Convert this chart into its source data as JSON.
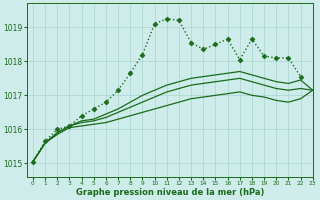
{
  "background_color": "#ceecea",
  "grid_color": "#aad4d0",
  "line_color": "#1a6b1a",
  "xlabel": "Graphe pression niveau de la mer (hPa)",
  "xlim": [
    -0.5,
    23
  ],
  "ylim": [
    1014.6,
    1019.7
  ],
  "yticks": [
    1015,
    1016,
    1017,
    1018,
    1019
  ],
  "xticks": [
    0,
    1,
    2,
    3,
    4,
    5,
    6,
    7,
    8,
    9,
    10,
    11,
    12,
    13,
    14,
    15,
    16,
    17,
    18,
    19,
    20,
    21,
    22,
    23
  ],
  "series": [
    {
      "x": [
        0,
        1,
        2,
        3,
        4,
        5,
        6,
        7,
        8,
        9,
        10,
        11,
        12,
        13,
        14,
        15,
        16,
        17,
        18,
        19,
        20,
        21,
        22,
        23
      ],
      "y": [
        1015.05,
        1015.6,
        1015.85,
        1016.05,
        1016.1,
        1016.15,
        1016.2,
        1016.3,
        1016.4,
        1016.5,
        1016.6,
        1016.7,
        1016.8,
        1016.9,
        1016.95,
        1017.0,
        1017.05,
        1017.1,
        1017.0,
        1016.95,
        1016.85,
        1016.8,
        1016.9,
        1017.15
      ],
      "style": "-",
      "marker": null,
      "linewidth": 0.9
    },
    {
      "x": [
        0,
        1,
        2,
        3,
        4,
        5,
        6,
        7,
        8,
        9,
        10,
        11,
        12,
        13,
        14,
        15,
        16,
        17,
        18,
        19,
        20,
        21,
        22,
        23
      ],
      "y": [
        1015.05,
        1015.6,
        1015.9,
        1016.1,
        1016.2,
        1016.25,
        1016.35,
        1016.5,
        1016.65,
        1016.8,
        1016.95,
        1017.1,
        1017.2,
        1017.3,
        1017.35,
        1017.4,
        1017.45,
        1017.5,
        1017.4,
        1017.3,
        1017.2,
        1017.15,
        1017.2,
        1017.15
      ],
      "style": "-",
      "marker": null,
      "linewidth": 0.9
    },
    {
      "x": [
        0,
        1,
        2,
        3,
        4,
        5,
        6,
        7,
        8,
        9,
        10,
        11,
        12,
        13,
        14,
        15,
        16,
        17,
        18,
        19,
        20,
        21,
        22,
        23
      ],
      "y": [
        1015.05,
        1015.6,
        1015.9,
        1016.1,
        1016.25,
        1016.3,
        1016.45,
        1016.6,
        1016.8,
        1017.0,
        1017.15,
        1017.3,
        1017.4,
        1017.5,
        1017.55,
        1017.6,
        1017.65,
        1017.7,
        1017.6,
        1017.5,
        1017.4,
        1017.35,
        1017.45,
        1017.15
      ],
      "style": "-",
      "marker": null,
      "linewidth": 0.9
    },
    {
      "x": [
        0,
        1,
        2,
        3,
        4,
        5,
        6,
        7,
        8,
        9,
        10,
        11,
        12,
        13,
        14,
        15,
        16,
        17,
        18,
        19,
        20,
        21,
        22
      ],
      "y": [
        1015.05,
        1015.65,
        1016.0,
        1016.1,
        1016.4,
        1016.6,
        1016.8,
        1017.15,
        1017.65,
        1018.2,
        1019.1,
        1019.25,
        1019.2,
        1018.55,
        1018.35,
        1018.5,
        1018.65,
        1018.05,
        1018.65,
        1018.15,
        1018.1,
        1018.1,
        1017.55
      ],
      "style": ":",
      "marker": "D",
      "linewidth": 1.0,
      "markersize": 2.5
    }
  ]
}
